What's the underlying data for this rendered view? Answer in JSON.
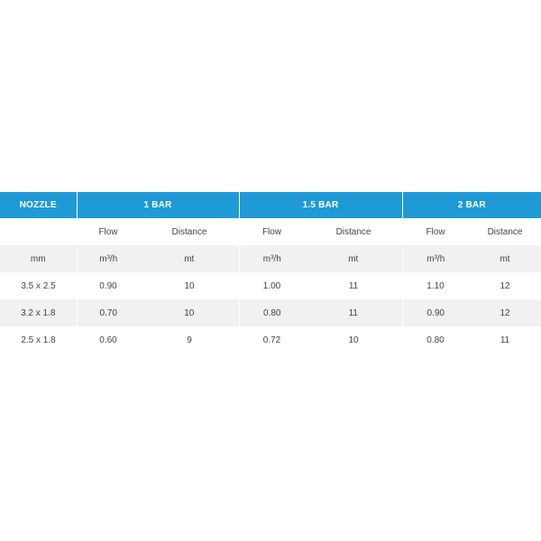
{
  "table": {
    "headers": {
      "nozzle": "NOZZLE",
      "bar1": "1 BAR",
      "bar15": "1.5 BAR",
      "bar2": "2 BAR"
    },
    "subheaders": [
      "Flow",
      "Distance",
      "Flow",
      "Distance",
      "Flow",
      "Distance"
    ],
    "units": [
      "mm",
      "m³/h",
      "mt",
      "m³/h",
      "mt",
      "m³/h",
      "mt"
    ],
    "rows": [
      [
        "3.5 x 2.5",
        "0.90",
        "10",
        "1.00",
        "11",
        "1.10",
        "12"
      ],
      [
        "3.2 x 1.8",
        "0.70",
        "10",
        "0.80",
        "11",
        "0.90",
        "12"
      ],
      [
        "2.5 x 1.8",
        "0.60",
        "9",
        "0.72",
        "10",
        "0.80",
        "11"
      ]
    ]
  }
}
